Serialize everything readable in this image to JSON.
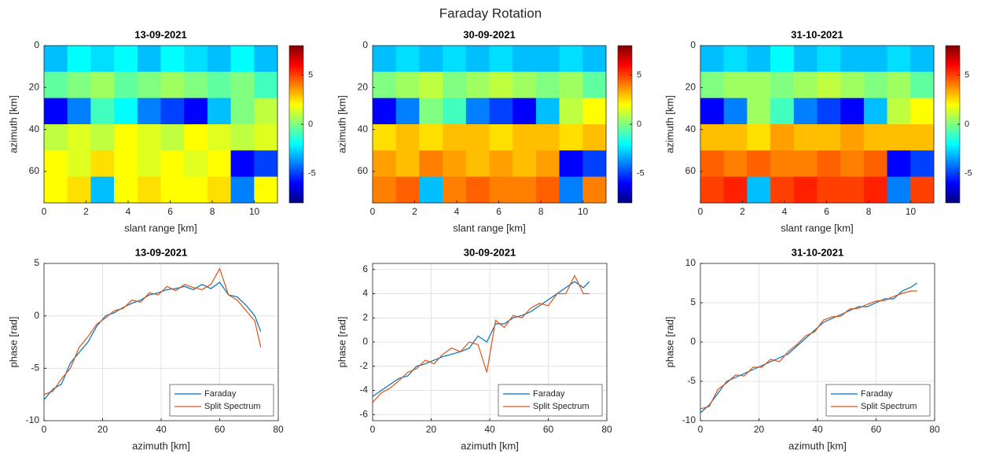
{
  "title": "Faraday Rotation",
  "chart_data": [
    {
      "type": "heatmap",
      "title": "13-09-2021",
      "x_label": "slant range [km]",
      "y_label": "azimuth [km]",
      "xlim": [
        0,
        11.1
      ],
      "ylim": [
        75,
        0
      ],
      "xticks": [
        0,
        2,
        4,
        6,
        8,
        10
      ],
      "yticks": [
        0,
        20,
        40,
        60
      ],
      "colormap": "jet",
      "clim": [
        -8,
        8
      ],
      "cticks": [
        -5,
        0,
        5
      ],
      "z": [
        [
          -3,
          -2,
          -2.5,
          -2,
          -3,
          -2,
          -2.5,
          -3,
          -2,
          -3
        ],
        [
          -0.5,
          0,
          0.5,
          -0.5,
          0,
          0.5,
          0,
          -0.5,
          0,
          -1
        ],
        [
          -6,
          -4,
          -1,
          -2,
          -4,
          -5,
          -6,
          -3,
          0,
          1
        ],
        [
          1,
          1.5,
          1,
          2,
          1.5,
          1,
          2,
          1.5,
          1,
          1.5
        ],
        [
          2,
          1.5,
          2.5,
          2,
          1.5,
          2,
          1.5,
          2,
          -6,
          -5
        ],
        [
          2,
          2.5,
          -3,
          2,
          2.5,
          2,
          2,
          2.5,
          -4,
          2
        ]
      ]
    },
    {
      "type": "heatmap",
      "title": "30-09-2021",
      "x_label": "slant range [km]",
      "y_label": "azimuth [km]",
      "xlim": [
        0,
        11.1
      ],
      "ylim": [
        75,
        0
      ],
      "xticks": [
        0,
        2,
        4,
        6,
        8,
        10
      ],
      "yticks": [
        0,
        20,
        40,
        60
      ],
      "colormap": "jet",
      "clim": [
        -8,
        8
      ],
      "cticks": [
        -5,
        0,
        5
      ],
      "z": [
        [
          -3,
          -2.5,
          -3,
          -2.5,
          -3,
          -2.5,
          -3,
          -3,
          -2.5,
          -3
        ],
        [
          0,
          0.5,
          1,
          0,
          0.5,
          1,
          0.5,
          0,
          0.5,
          -0.5
        ],
        [
          -6,
          -4,
          0,
          -1,
          -4,
          -5,
          -6,
          -3,
          1,
          2
        ],
        [
          2.5,
          3,
          2.5,
          3,
          3,
          2.5,
          3,
          3,
          2.5,
          3
        ],
        [
          3.5,
          3,
          4,
          3.5,
          3,
          3.5,
          3,
          3.5,
          -6,
          -5
        ],
        [
          4,
          4.5,
          -3,
          4,
          4.5,
          4,
          4,
          4.5,
          -4,
          4
        ]
      ]
    },
    {
      "type": "heatmap",
      "title": "31-10-2021",
      "x_label": "slant range [km]",
      "y_label": "azimuth [km]",
      "xlim": [
        0,
        11.1
      ],
      "ylim": [
        75,
        0
      ],
      "xticks": [
        0,
        2,
        4,
        6,
        8,
        10
      ],
      "yticks": [
        0,
        20,
        40,
        60
      ],
      "colormap": "jet",
      "clim": [
        -8,
        8
      ],
      "cticks": [
        -5,
        0,
        5
      ],
      "z": [
        [
          -3,
          -2.5,
          -3,
          -2,
          -3,
          -2.5,
          -3,
          -3,
          -2.5,
          -3
        ],
        [
          0,
          0.5,
          0.5,
          0,
          0.5,
          1,
          0.5,
          0,
          0.5,
          -0.5
        ],
        [
          -6,
          -4,
          0.5,
          -1,
          -4,
          -5,
          -6,
          -3,
          1,
          2
        ],
        [
          3,
          3,
          2.5,
          3.5,
          3,
          3,
          3.5,
          3,
          3,
          3
        ],
        [
          4.5,
          4,
          4.5,
          4,
          4,
          4.5,
          4,
          4.5,
          -6,
          -5
        ],
        [
          5,
          5.5,
          -3,
          5,
          5.5,
          5,
          5,
          5.5,
          -4,
          5
        ]
      ]
    },
    {
      "type": "line",
      "title": "13-09-2021",
      "x_label": "azimuth [km]",
      "y_label": "phase [rad]",
      "xlim": [
        0,
        80
      ],
      "ylim": [
        -10,
        5
      ],
      "xticks": [
        0,
        20,
        40,
        60,
        80
      ],
      "yticks": [
        -10,
        -5,
        0,
        5
      ],
      "grid": true,
      "legend": "lower right",
      "x": [
        0,
        3,
        6,
        9,
        12,
        15,
        18,
        21,
        24,
        27,
        30,
        33,
        36,
        39,
        42,
        45,
        48,
        51,
        54,
        57,
        60,
        63,
        66,
        69,
        72,
        74
      ],
      "series": [
        {
          "name": "Faraday",
          "color": "#0072bd",
          "values": [
            -8,
            -7,
            -6.5,
            -4.5,
            -3.5,
            -2.5,
            -1,
            0,
            0.3,
            0.8,
            1.2,
            1.5,
            2,
            2.2,
            2.5,
            2.6,
            2.8,
            2.5,
            3,
            2.6,
            3.2,
            2,
            1.8,
            1,
            0,
            -1.5
          ]
        },
        {
          "name": "Split Spectrum",
          "color": "#d95319",
          "values": [
            -7.5,
            -7.2,
            -6,
            -5,
            -3,
            -2,
            -0.8,
            -0.2,
            0.5,
            0.7,
            1.5,
            1.3,
            2.2,
            2,
            2.8,
            2.4,
            3,
            2.7,
            2.5,
            3,
            4.5,
            2,
            1.5,
            0.5,
            -0.5,
            -3
          ]
        }
      ]
    },
    {
      "type": "line",
      "title": "30-09-2021",
      "x_label": "azimuth [km]",
      "y_label": "phase [rad]",
      "xlim": [
        0,
        80
      ],
      "ylim": [
        -6.5,
        6.5
      ],
      "xticks": [
        0,
        20,
        40,
        60,
        80
      ],
      "yticks": [
        -6,
        -4,
        -2,
        0,
        2,
        4,
        6
      ],
      "grid": true,
      "legend": "lower right",
      "x": [
        0,
        3,
        6,
        9,
        12,
        15,
        18,
        21,
        24,
        27,
        30,
        33,
        36,
        39,
        42,
        45,
        48,
        51,
        54,
        57,
        60,
        63,
        66,
        69,
        72,
        74
      ],
      "series": [
        {
          "name": "Faraday",
          "color": "#0072bd",
          "values": [
            -4.5,
            -4,
            -3.5,
            -3,
            -2.8,
            -2,
            -1.8,
            -1.5,
            -1.2,
            -1,
            -0.8,
            -0.5,
            0.5,
            0,
            1.5,
            1.5,
            2,
            2.2,
            2.5,
            3,
            3.5,
            4,
            4.5,
            5,
            4.5,
            5
          ]
        },
        {
          "name": "Split Spectrum",
          "color": "#d95319",
          "values": [
            -5,
            -4.2,
            -3.8,
            -3.2,
            -2.5,
            -2.2,
            -1.5,
            -1.8,
            -1,
            -0.5,
            -0.8,
            0,
            -0.2,
            -2.5,
            1.8,
            1.2,
            2.2,
            2,
            2.8,
            3.2,
            3,
            4,
            4,
            5.5,
            4,
            4
          ]
        }
      ]
    },
    {
      "type": "line",
      "title": "31-10-2021",
      "x_label": "azimuth [km]",
      "y_label": "phase [rad]",
      "xlim": [
        0,
        80
      ],
      "ylim": [
        -10,
        10
      ],
      "xticks": [
        0,
        20,
        40,
        60,
        80
      ],
      "yticks": [
        -10,
        -5,
        0,
        5,
        10
      ],
      "grid": true,
      "legend": "lower right",
      "x": [
        0,
        3,
        6,
        9,
        12,
        15,
        18,
        21,
        24,
        27,
        30,
        33,
        36,
        39,
        42,
        45,
        48,
        51,
        54,
        57,
        60,
        63,
        66,
        69,
        72,
        74
      ],
      "series": [
        {
          "name": "Faraday",
          "color": "#0072bd",
          "values": [
            -9,
            -8,
            -6.5,
            -5,
            -4.5,
            -4,
            -3.5,
            -3,
            -2.5,
            -2,
            -1.5,
            -0.5,
            0.5,
            1.5,
            2.5,
            3,
            3.5,
            4,
            4.5,
            4.5,
            5,
            5.5,
            5.5,
            6.5,
            7,
            7.5
          ]
        },
        {
          "name": "Split Spectrum",
          "color": "#d95319",
          "values": [
            -8.5,
            -8.2,
            -6,
            -5.2,
            -4.2,
            -4.3,
            -3.2,
            -3.2,
            -2.2,
            -2.5,
            -1.2,
            -0.3,
            0.8,
            1.3,
            2.8,
            3.2,
            3.3,
            4.2,
            4.3,
            4.8,
            5.2,
            5.3,
            5.8,
            6.2,
            6.5,
            6.5
          ]
        }
      ]
    }
  ]
}
